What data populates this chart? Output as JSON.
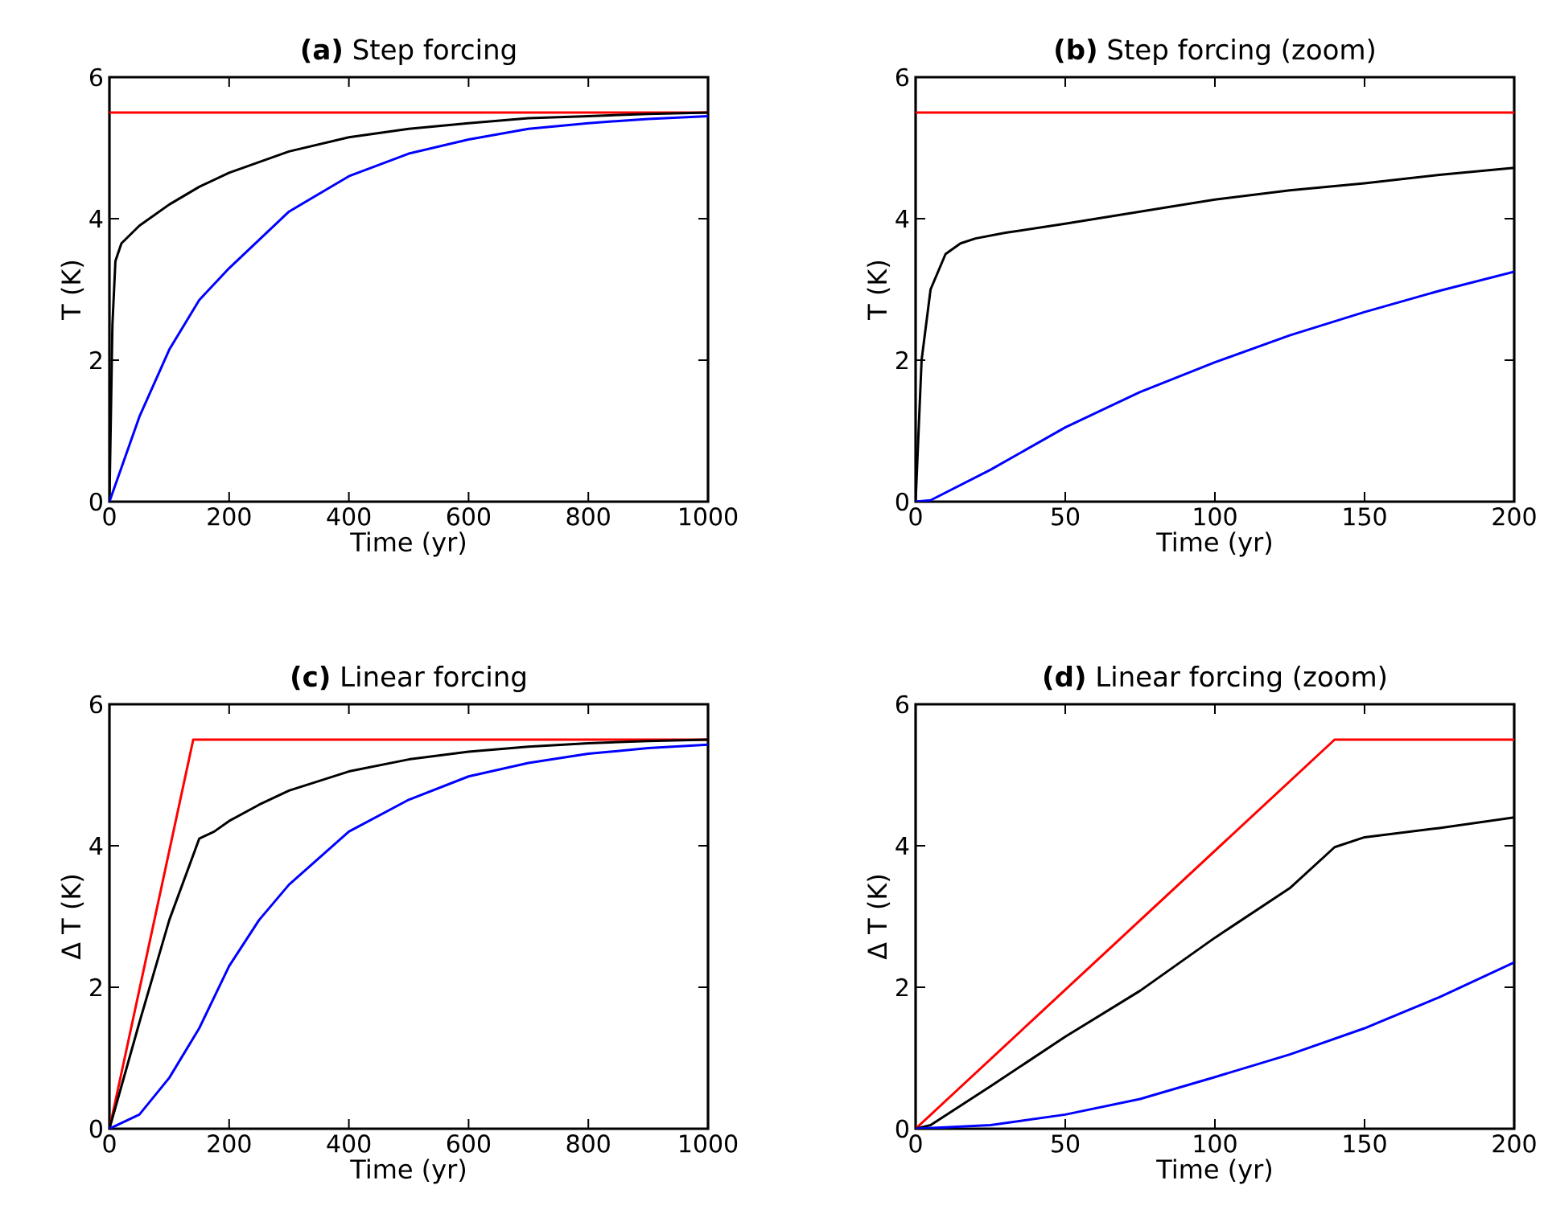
{
  "chart_data": [
    {
      "type": "line",
      "title": "**(a)** Step forcing",
      "xlabel": "Time (yr)",
      "ylabel": "T (K)",
      "xlim": [
        0,
        1000
      ],
      "ylim": [
        0,
        6
      ],
      "xticks": [
        0,
        200,
        400,
        600,
        800,
        1000
      ],
      "yticks": [
        0,
        2,
        4,
        6
      ],
      "grid": false,
      "series": [
        {
          "color": "#ff0000",
          "x": [
            0,
            1000
          ],
          "values": [
            5.5,
            5.5
          ]
        },
        {
          "color": "#000000",
          "x": [
            0,
            5,
            10,
            20,
            50,
            100,
            150,
            200,
            300,
            400,
            500,
            600,
            700,
            800,
            900,
            1000
          ],
          "values": [
            0,
            2.5,
            3.4,
            3.65,
            3.9,
            4.2,
            4.45,
            4.65,
            4.95,
            5.15,
            5.27,
            5.35,
            5.42,
            5.45,
            5.48,
            5.5
          ]
        },
        {
          "color": "#0000ff",
          "x": [
            0,
            50,
            100,
            150,
            200,
            300,
            400,
            500,
            600,
            700,
            800,
            900,
            1000
          ],
          "values": [
            0,
            1.2,
            2.15,
            2.85,
            3.3,
            4.1,
            4.6,
            4.92,
            5.12,
            5.27,
            5.35,
            5.41,
            5.45
          ]
        }
      ]
    },
    {
      "type": "line",
      "title": "**(b)** Step forcing (zoom)",
      "xlabel": "Time (yr)",
      "ylabel": "T (K)",
      "xlim": [
        0,
        200
      ],
      "ylim": [
        0,
        6
      ],
      "xticks": [
        0,
        50,
        100,
        150,
        200
      ],
      "yticks": [
        0,
        2,
        4,
        6
      ],
      "grid": false,
      "series": [
        {
          "color": "#ff0000",
          "x": [
            0,
            200
          ],
          "values": [
            5.5,
            5.5
          ]
        },
        {
          "color": "#000000",
          "x": [
            0,
            2,
            5,
            10,
            15,
            20,
            30,
            50,
            75,
            100,
            125,
            150,
            175,
            200
          ],
          "values": [
            0,
            2.0,
            3.0,
            3.5,
            3.65,
            3.72,
            3.8,
            3.93,
            4.1,
            4.27,
            4.4,
            4.5,
            4.62,
            4.72
          ]
        },
        {
          "color": "#0000ff",
          "x": [
            0,
            5,
            25,
            50,
            75,
            100,
            125,
            150,
            175,
            200
          ],
          "values": [
            0,
            0.02,
            0.45,
            1.05,
            1.55,
            1.97,
            2.35,
            2.68,
            2.98,
            3.25
          ]
        }
      ]
    },
    {
      "type": "line",
      "title": "**(c)** Linear forcing",
      "xlabel": "Time (yr)",
      "ylabel": "Δ T (K)",
      "xlim": [
        0,
        1000
      ],
      "ylim": [
        0,
        6
      ],
      "xticks": [
        0,
        200,
        400,
        600,
        800,
        1000
      ],
      "yticks": [
        0,
        2,
        4,
        6
      ],
      "grid": false,
      "series": [
        {
          "color": "#ff0000",
          "x": [
            0,
            140,
            1000
          ],
          "values": [
            0,
            5.5,
            5.5
          ]
        },
        {
          "color": "#000000",
          "x": [
            0,
            50,
            100,
            150,
            175,
            200,
            250,
            300,
            400,
            500,
            600,
            700,
            800,
            900,
            1000
          ],
          "values": [
            0,
            1.5,
            2.95,
            4.1,
            4.2,
            4.35,
            4.58,
            4.78,
            5.05,
            5.22,
            5.33,
            5.4,
            5.45,
            5.48,
            5.5
          ]
        },
        {
          "color": "#0000ff",
          "x": [
            0,
            50,
            100,
            150,
            200,
            250,
            300,
            400,
            500,
            600,
            700,
            800,
            900,
            1000
          ],
          "values": [
            0,
            0.2,
            0.72,
            1.42,
            2.3,
            2.95,
            3.45,
            4.2,
            4.65,
            4.98,
            5.17,
            5.3,
            5.38,
            5.43
          ]
        }
      ]
    },
    {
      "type": "line",
      "title": "**(d)** Linear forcing (zoom)",
      "xlabel": "Time (yr)",
      "ylabel": "Δ T (K)",
      "xlim": [
        0,
        200
      ],
      "ylim": [
        0,
        6
      ],
      "xticks": [
        0,
        50,
        100,
        150,
        200
      ],
      "yticks": [
        0,
        2,
        4,
        6
      ],
      "grid": false,
      "series": [
        {
          "color": "#ff0000",
          "x": [
            0,
            140,
            200
          ],
          "values": [
            0,
            5.5,
            5.5
          ]
        },
        {
          "color": "#000000",
          "x": [
            0,
            5,
            25,
            50,
            75,
            100,
            125,
            140,
            150,
            175,
            200
          ],
          "values": [
            0,
            0.05,
            0.6,
            1.3,
            1.95,
            2.7,
            3.4,
            3.98,
            4.12,
            4.25,
            4.4
          ]
        },
        {
          "color": "#0000ff",
          "x": [
            0,
            25,
            50,
            75,
            100,
            125,
            150,
            175,
            200
          ],
          "values": [
            0,
            0.05,
            0.2,
            0.42,
            0.73,
            1.05,
            1.42,
            1.86,
            2.35
          ]
        }
      ]
    }
  ]
}
